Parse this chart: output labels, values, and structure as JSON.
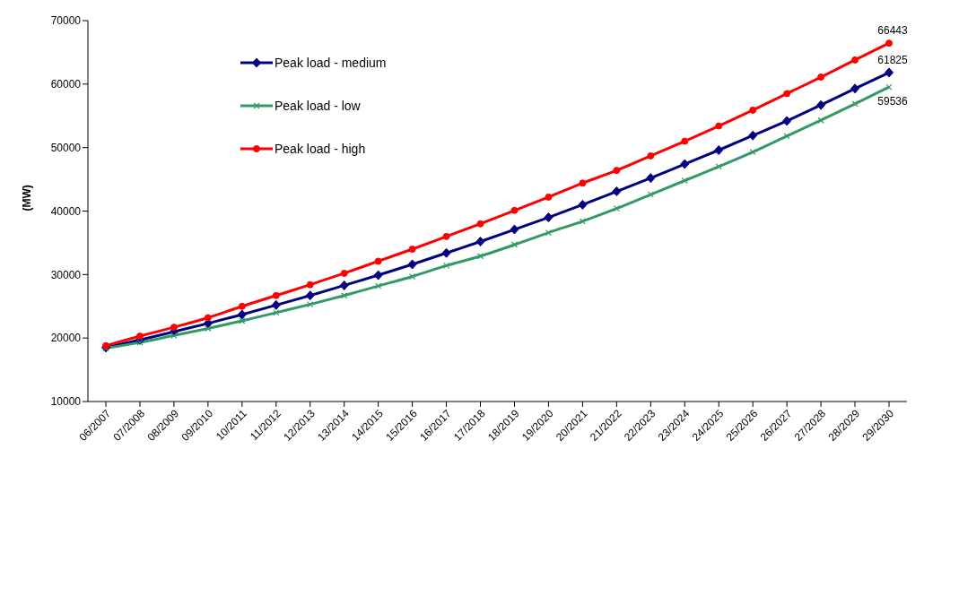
{
  "chart_data": {
    "type": "line",
    "ylabel": "(MW)",
    "categories": [
      "06/2007",
      "07/2008",
      "08/2009",
      "09/2010",
      "10/2011",
      "11/2012",
      "12/2013",
      "13/2014",
      "14/2015",
      "15/2016",
      "16/2017",
      "17/2018",
      "18/2019",
      "19/2020",
      "20/2021",
      "21/2022",
      "22/2023",
      "23/2024",
      "24/2025",
      "25/2026",
      "26/2027",
      "27/2028",
      "28/2029",
      "29/2030"
    ],
    "series": [
      {
        "name": "Peak load - medium",
        "color": "#000080",
        "marker": "diamond",
        "values": [
          18500,
          19700,
          21000,
          22300,
          23700,
          25200,
          26700,
          28300,
          29900,
          31600,
          33400,
          35200,
          37100,
          39000,
          41000,
          43100,
          45200,
          47400,
          49600,
          51900,
          54200,
          56700,
          59300,
          61825
        ],
        "value_labels": [
          null,
          null,
          null,
          null,
          null,
          null,
          null,
          null,
          null,
          null,
          null,
          null,
          null,
          null,
          null,
          null,
          null,
          null,
          null,
          null,
          null,
          null,
          null,
          "61825"
        ]
      },
      {
        "name": "Peak load - low",
        "color": "#339966",
        "marker": "cross",
        "values": [
          18400,
          19300,
          20400,
          21500,
          22700,
          24000,
          25300,
          26700,
          28200,
          29700,
          31400,
          32900,
          34700,
          36600,
          38400,
          40400,
          42600,
          44800,
          47000,
          49300,
          51800,
          54300,
          56900,
          59536
        ],
        "value_labels": [
          null,
          null,
          null,
          null,
          null,
          null,
          null,
          null,
          null,
          null,
          null,
          null,
          null,
          null,
          null,
          null,
          null,
          null,
          null,
          null,
          null,
          null,
          null,
          "59536"
        ]
      },
      {
        "name": "Peak load - high",
        "color": "#ff0000",
        "marker": "circle",
        "values": [
          18800,
          20300,
          21700,
          23200,
          25000,
          26700,
          28400,
          30200,
          32100,
          34000,
          36000,
          38000,
          40100,
          42200,
          44400,
          46400,
          48700,
          51000,
          53400,
          55900,
          58500,
          61100,
          63800,
          66443
        ],
        "value_labels": [
          null,
          null,
          null,
          null,
          null,
          null,
          null,
          null,
          null,
          null,
          null,
          null,
          null,
          null,
          null,
          null,
          null,
          null,
          null,
          null,
          null,
          null,
          null,
          "66443"
        ]
      }
    ],
    "ylim": [
      10000,
      70000
    ],
    "yticks": [
      10000,
      20000,
      30000,
      40000,
      50000,
      60000,
      70000
    ],
    "grid": false,
    "legend": "top left",
    "line_style": "solid"
  }
}
